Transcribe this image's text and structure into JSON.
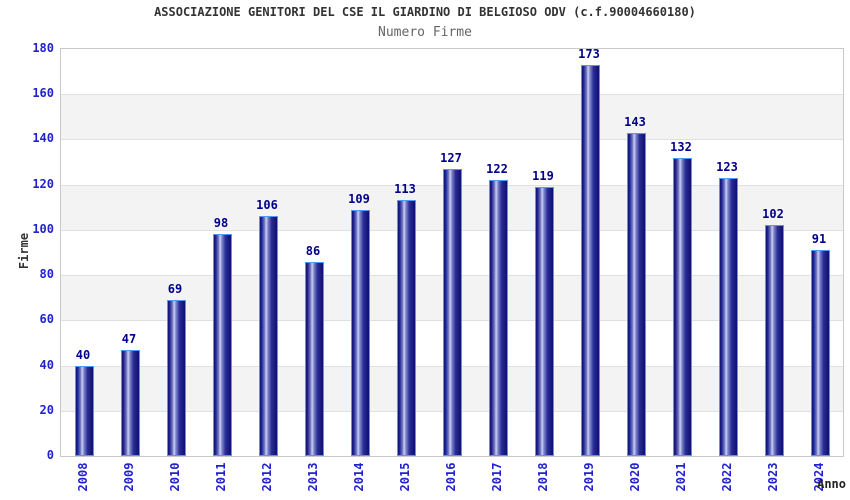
{
  "header": {
    "title": "ASSOCIAZIONE GENITORI DEL CSE IL GIARDINO DI BELGIOSO ODV (c.f.90004660180)",
    "subtitle": "Numero Firme"
  },
  "chart_data": {
    "type": "bar",
    "title": "Numero Firme",
    "categories": [
      "2008",
      "2009",
      "2010",
      "2011",
      "2012",
      "2013",
      "2014",
      "2015",
      "2016",
      "2017",
      "2018",
      "2019",
      "2020",
      "2021",
      "2022",
      "2023",
      "2024"
    ],
    "values": [
      40,
      47,
      69,
      98,
      106,
      86,
      109,
      113,
      127,
      122,
      119,
      173,
      143,
      132,
      123,
      102,
      91
    ],
    "xlabel": "Anno",
    "ylabel": "Firme",
    "ylim": [
      0,
      180
    ],
    "ytick_step": 20,
    "yticks": [
      0,
      20,
      40,
      60,
      80,
      100,
      120,
      140,
      160,
      180
    ],
    "grid": true,
    "legend_position": "none",
    "band_fill": "alternating horizontal bands"
  },
  "colors": {
    "title_text": "#333333",
    "subtitle_text": "#666666",
    "tick_label_blue": "#2222cc",
    "value_label_navy": "#00008b",
    "bar_dark": "#10106e",
    "bar_light": "#ced3f2",
    "bar_border": "#4d9aff",
    "band_gray": "#f3f3f3",
    "gridline": "#e0e0e0",
    "plot_border": "#c9c9c9",
    "background": "#ffffff"
  }
}
